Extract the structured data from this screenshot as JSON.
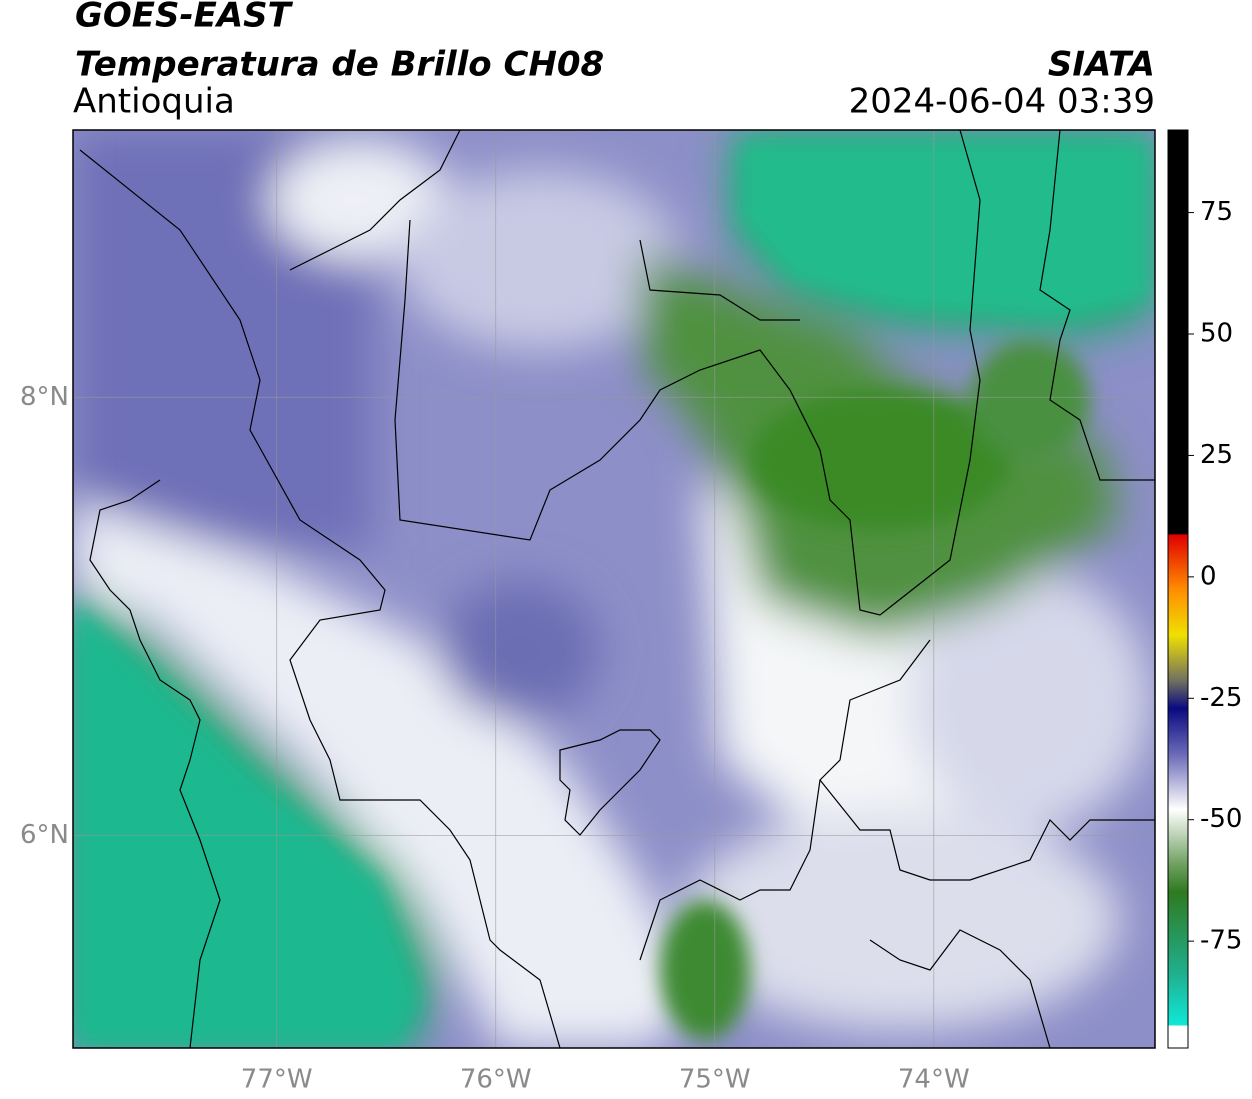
{
  "map": {
    "title": "GOES-EAST",
    "subtitle": "Temperatura de Brillo CH08",
    "region": "Antioquia",
    "source": "SIATA",
    "datetime": "2024-06-04 03:39",
    "xlim": [
      -77.93,
      -72.99
    ],
    "ylim": [
      5.03,
      9.22
    ],
    "xticks": [
      {
        "value": -77,
        "label": "77°W"
      },
      {
        "value": -76,
        "label": "76°W"
      },
      {
        "value": -75,
        "label": "75°W"
      },
      {
        "value": -74,
        "label": "74°W"
      }
    ],
    "yticks": [
      {
        "value": 6,
        "label": "6°N"
      },
      {
        "value": 8,
        "label": "8°N"
      }
    ],
    "grid": true,
    "colorbar": {
      "lim": [
        -97,
        92
      ],
      "ticks": [
        75,
        50,
        25,
        0,
        -25,
        -50,
        -75
      ]
    }
  }
}
